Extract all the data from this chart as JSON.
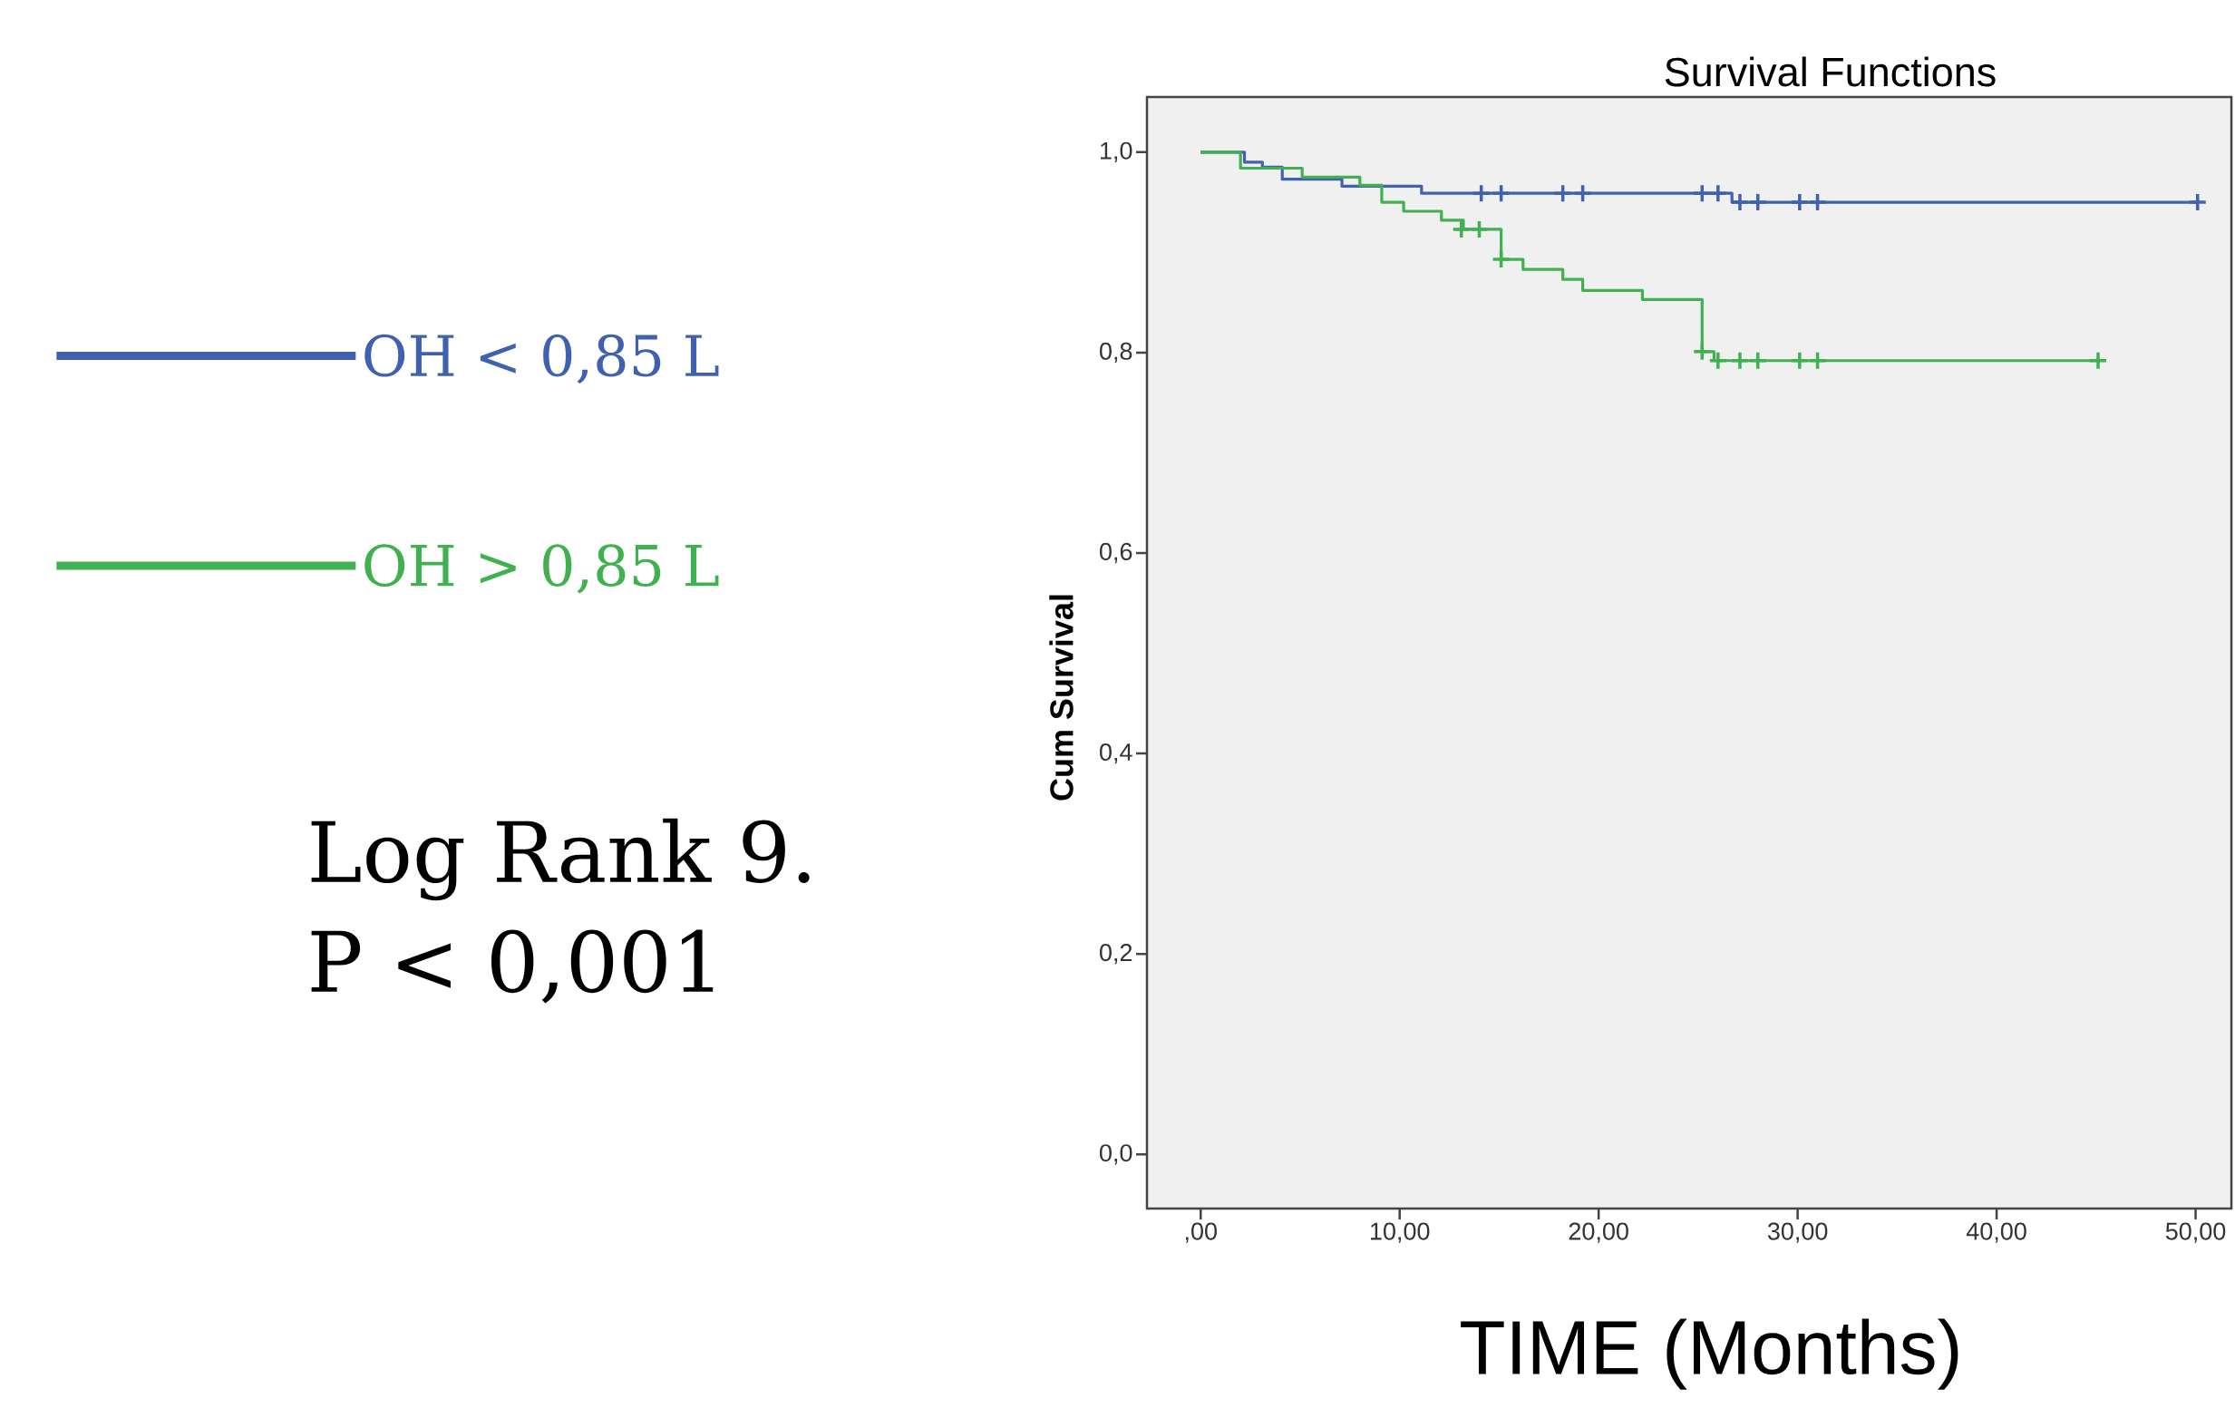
{
  "chart_data": {
    "type": "step",
    "title": "Survival Functions",
    "xlabel": "TIME (Months)",
    "ylabel": "Cum Survival",
    "annotations": [
      "Log Rank 9.",
      "P < 0,001"
    ],
    "legend": "left",
    "xlim": [
      -2.7,
      51.8
    ],
    "ylim": [
      -0.054,
      1.055
    ],
    "xticks": [
      {
        "value": 0,
        "label": ",00"
      },
      {
        "value": 10,
        "label": "10,00"
      },
      {
        "value": 20,
        "label": "20,00"
      },
      {
        "value": 30,
        "label": "30,00"
      },
      {
        "value": 40,
        "label": "40,00"
      },
      {
        "value": 50,
        "label": "50,00"
      }
    ],
    "yticks": [
      {
        "value": 0,
        "label": "0,0"
      },
      {
        "value": 0.2,
        "label": "0,2"
      },
      {
        "value": 0.4,
        "label": "0,4"
      },
      {
        "value": 0.6,
        "label": "0,6"
      },
      {
        "value": 0.8,
        "label": "0,8"
      },
      {
        "value": 1,
        "label": "1,0"
      }
    ],
    "series": [
      {
        "name": "OH < 0,85 L",
        "color": "#4060b0",
        "x": [
          0,
          2.2,
          3.1,
          4.1,
          7.1,
          11.1,
          26.7,
          50.1
        ],
        "values": [
          1.0,
          0.99,
          0.985,
          0.973,
          0.966,
          0.959,
          0.95,
          0.95
        ]
      },
      {
        "name": "OH > 0,85 L",
        "color": "#40b050",
        "x": [
          0,
          2.0,
          5.1,
          8.0,
          9.1,
          10.2,
          12.1,
          13.2,
          15.1,
          16.2,
          18.2,
          19.2,
          22.2,
          25.2,
          25.8,
          45.1
        ],
        "values": [
          1.0,
          0.984,
          0.975,
          0.967,
          0.95,
          0.941,
          0.932,
          0.923,
          0.893,
          0.883,
          0.873,
          0.862,
          0.853,
          0.801,
          0.792,
          0.792
        ]
      },
      {
        "type": "scatter",
        "marker": "cross",
        "color": "#4060b0",
        "x": [
          14.1,
          15.1,
          18.2,
          19.2,
          25.2,
          26.0,
          27.1,
          28.0,
          30.1,
          31.0,
          50.1
        ],
        "values": [
          0.959,
          0.959,
          0.959,
          0.959,
          0.959,
          0.959,
          0.95,
          0.95,
          0.95,
          0.95,
          0.95
        ]
      },
      {
        "type": "scatter",
        "marker": "cross",
        "color": "#40b050",
        "x": [
          13.1,
          14.0,
          15.1,
          25.2,
          26.0,
          27.1,
          28.0,
          30.1,
          31.0,
          45.1
        ],
        "values": [
          0.923,
          0.923,
          0.893,
          0.801,
          0.792,
          0.792,
          0.792,
          0.792,
          0.792,
          0.792
        ]
      }
    ]
  }
}
